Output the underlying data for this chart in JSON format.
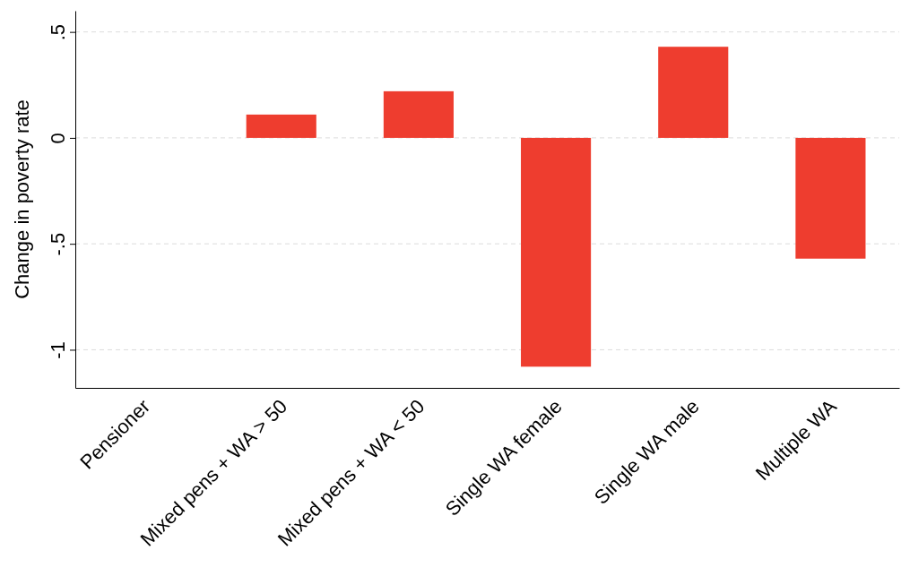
{
  "chart_data": {
    "type": "bar",
    "ylabel": "Change in poverty rate",
    "categories": [
      "Pensioner",
      "Mixed pens + WA > 50",
      "Mixed pens + WA < 50",
      "Single WA female",
      "Single WA male",
      "Multiple WA"
    ],
    "values": [
      0,
      0.11,
      0.22,
      -1.08,
      0.43,
      -0.57
    ],
    "color": "#ee3d2f",
    "ylim": [
      -1.18,
      0.6
    ],
    "yticks": [
      {
        "value": -1,
        "label": "-1"
      },
      {
        "value": -0.5,
        "label": "-.5"
      },
      {
        "value": 0,
        "label": "0"
      },
      {
        "value": 0.5,
        "label": ".5"
      }
    ],
    "grid": "y"
  }
}
